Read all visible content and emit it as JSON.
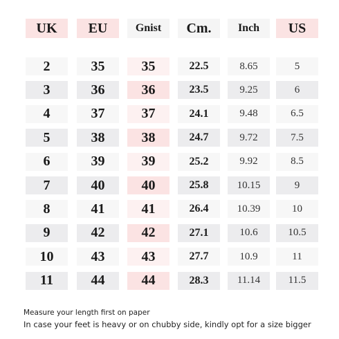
{
  "colors": {
    "header_pink": "#fbe3e3",
    "header_plain": "#f5f5f5",
    "row_light": "#f7f7f7",
    "row_grey": "#ececee",
    "gnist_light": "#fdf1f1",
    "gnist_dark": "#fbe3e3",
    "text": "#1a1a1a"
  },
  "table": {
    "headers": [
      "UK",
      "EU",
      "Gnist",
      "Cm.",
      "Inch",
      "US"
    ],
    "rows": [
      [
        "2",
        "35",
        "35",
        "22.5",
        "8.65",
        "5"
      ],
      [
        "3",
        "36",
        "36",
        "23.5",
        "9.25",
        "6"
      ],
      [
        "4",
        "37",
        "37",
        "24.1",
        "9.48",
        "6.5"
      ],
      [
        "5",
        "38",
        "38",
        "24.7",
        "9.72",
        "7.5"
      ],
      [
        "6",
        "39",
        "39",
        "25.2",
        "9.92",
        "8.5"
      ],
      [
        "7",
        "40",
        "40",
        "25.8",
        "10.15",
        "9"
      ],
      [
        "8",
        "41",
        "41",
        "26.4",
        "10.39",
        "10"
      ],
      [
        "9",
        "42",
        "42",
        "27.1",
        "10.6",
        "10.5"
      ],
      [
        "10",
        "43",
        "43",
        "27.7",
        "10.9",
        "11"
      ],
      [
        "11",
        "44",
        "44",
        "28.3",
        "11.14",
        "11.5"
      ]
    ]
  },
  "notes": {
    "line1": "Measure your length first on paper",
    "line2": "In case your feet is heavy or on chubby side, kindly opt for a size bigger"
  }
}
